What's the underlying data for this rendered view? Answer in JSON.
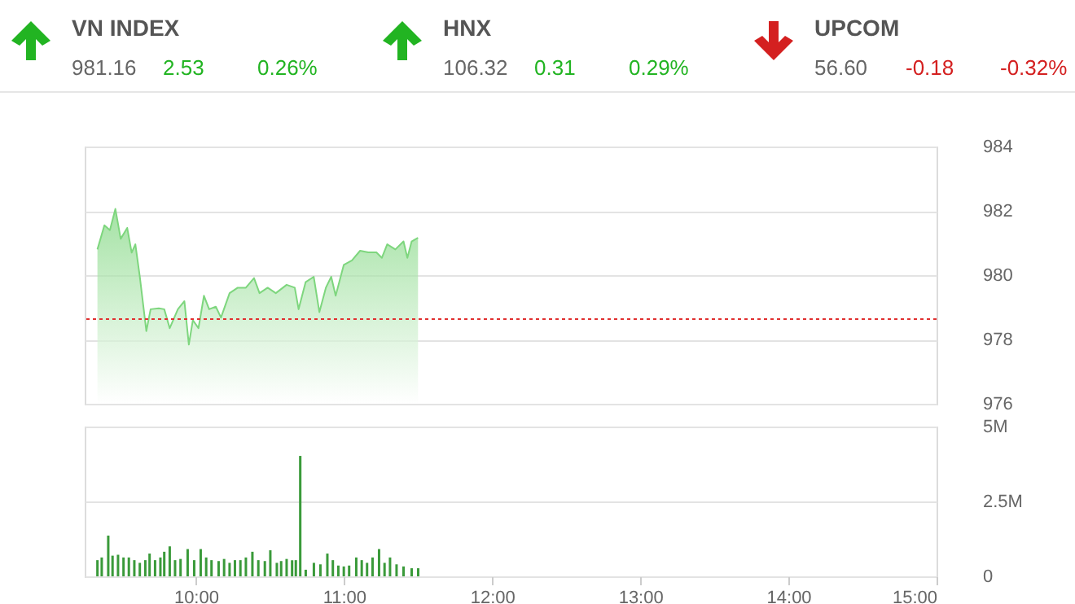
{
  "chart_data": [
    {
      "type": "other",
      "categories": [
        "VN INDEX",
        "HNX",
        "UPCOM"
      ],
      "values": [
        2.53,
        0.31,
        -0.18
      ],
      "data_labels": true,
      "colors": [
        "#22b422",
        "#22b422",
        "#d42020"
      ],
      "annotations": [
        "981.16",
        "0.26%",
        "106.32",
        "0.29%",
        "56.60",
        "-0.32%"
      ]
    },
    {
      "type": "area",
      "color": "#7ed67e",
      "x": [
        9.336,
        9.383,
        9.42,
        9.457,
        9.493,
        9.537,
        9.567,
        9.592,
        9.622,
        9.666,
        9.695,
        9.75,
        9.787,
        9.824,
        9.879,
        9.923,
        9.953,
        9.98,
        10.018,
        10.055,
        10.09,
        10.135,
        10.17,
        10.228,
        10.283,
        10.338,
        10.393,
        10.43,
        10.485,
        10.54,
        10.613,
        10.668,
        10.694,
        10.741,
        10.796,
        10.834,
        10.878,
        10.914,
        10.944,
        10.999,
        11.054,
        11.109,
        11.164,
        11.219,
        11.256,
        11.292,
        11.347,
        11.402,
        11.428,
        11.457,
        11.5
      ],
      "values": [
        980.8,
        981.55,
        981.4,
        982.06,
        981.13,
        981.47,
        980.7,
        980.96,
        979.95,
        978.26,
        978.94,
        978.97,
        978.94,
        978.35,
        978.94,
        979.19,
        977.84,
        978.6,
        978.35,
        979.36,
        978.94,
        979.02,
        978.68,
        979.44,
        979.61,
        979.61,
        979.91,
        979.44,
        979.61,
        979.44,
        979.7,
        979.61,
        978.94,
        979.78,
        979.95,
        978.85,
        979.61,
        979.95,
        979.36,
        980.32,
        980.46,
        980.76,
        980.71,
        980.71,
        980.54,
        980.96,
        980.8,
        981.05,
        980.54,
        981.05,
        981.16
      ],
      "xlim": [
        9.25,
        15
      ],
      "ylim": [
        976,
        984
      ],
      "yticks": [
        976,
        978,
        980,
        982,
        984
      ],
      "grid": "y",
      "tick_labels": "y",
      "ref_lines": [
        {
          "axis": "y",
          "value": 978.63,
          "color": "#e03030",
          "line_style": "dotted"
        }
      ]
    },
    {
      "type": "bar",
      "color": "#3a9a3a",
      "x": [
        9.336,
        9.365,
        9.409,
        9.438,
        9.475,
        9.512,
        9.548,
        9.585,
        9.622,
        9.659,
        9.688,
        9.725,
        9.761,
        9.787,
        9.824,
        9.86,
        9.897,
        9.945,
        9.989,
        10.033,
        10.07,
        10.106,
        10.154,
        10.191,
        10.228,
        10.264,
        10.301,
        10.338,
        10.382,
        10.422,
        10.466,
        10.503,
        10.547,
        10.576,
        10.613,
        10.65,
        10.675,
        10.705,
        10.742,
        10.797,
        10.841,
        10.888,
        10.925,
        10.962,
        10.999,
        11.035,
        11.083,
        11.12,
        11.156,
        11.193,
        11.237,
        11.274,
        11.311,
        11.355,
        11.402,
        11.457,
        11.501
      ],
      "values": [
        0.54,
        0.63,
        1.36,
        0.69,
        0.72,
        0.63,
        0.63,
        0.54,
        0.45,
        0.54,
        0.76,
        0.54,
        0.63,
        0.82,
        1.0,
        0.54,
        0.58,
        0.91,
        0.54,
        0.91,
        0.63,
        0.54,
        0.51,
        0.58,
        0.45,
        0.54,
        0.54,
        0.63,
        0.82,
        0.54,
        0.51,
        0.87,
        0.45,
        0.51,
        0.58,
        0.54,
        0.54,
        4.02,
        0.22,
        0.45,
        0.4,
        0.76,
        0.54,
        0.36,
        0.33,
        0.36,
        0.63,
        0.54,
        0.45,
        0.63,
        0.91,
        0.45,
        0.63,
        0.4,
        0.33,
        0.27,
        0.27
      ],
      "xlim": [
        9.25,
        15
      ],
      "xticks": [
        {
          "value": 10,
          "label": "10:00"
        },
        {
          "value": 11,
          "label": "11:00"
        },
        {
          "value": 12,
          "label": "12:00"
        },
        {
          "value": 13,
          "label": "13:00"
        },
        {
          "value": 14,
          "label": "14:00"
        },
        {
          "value": 15,
          "label": "15:00"
        }
      ],
      "ylim": [
        0,
        5
      ],
      "yticks": [
        0,
        {
          "value": 2.5,
          "label": "2.5M"
        },
        {
          "value": 5,
          "label": "5M"
        }
      ],
      "grid": "y"
    }
  ]
}
